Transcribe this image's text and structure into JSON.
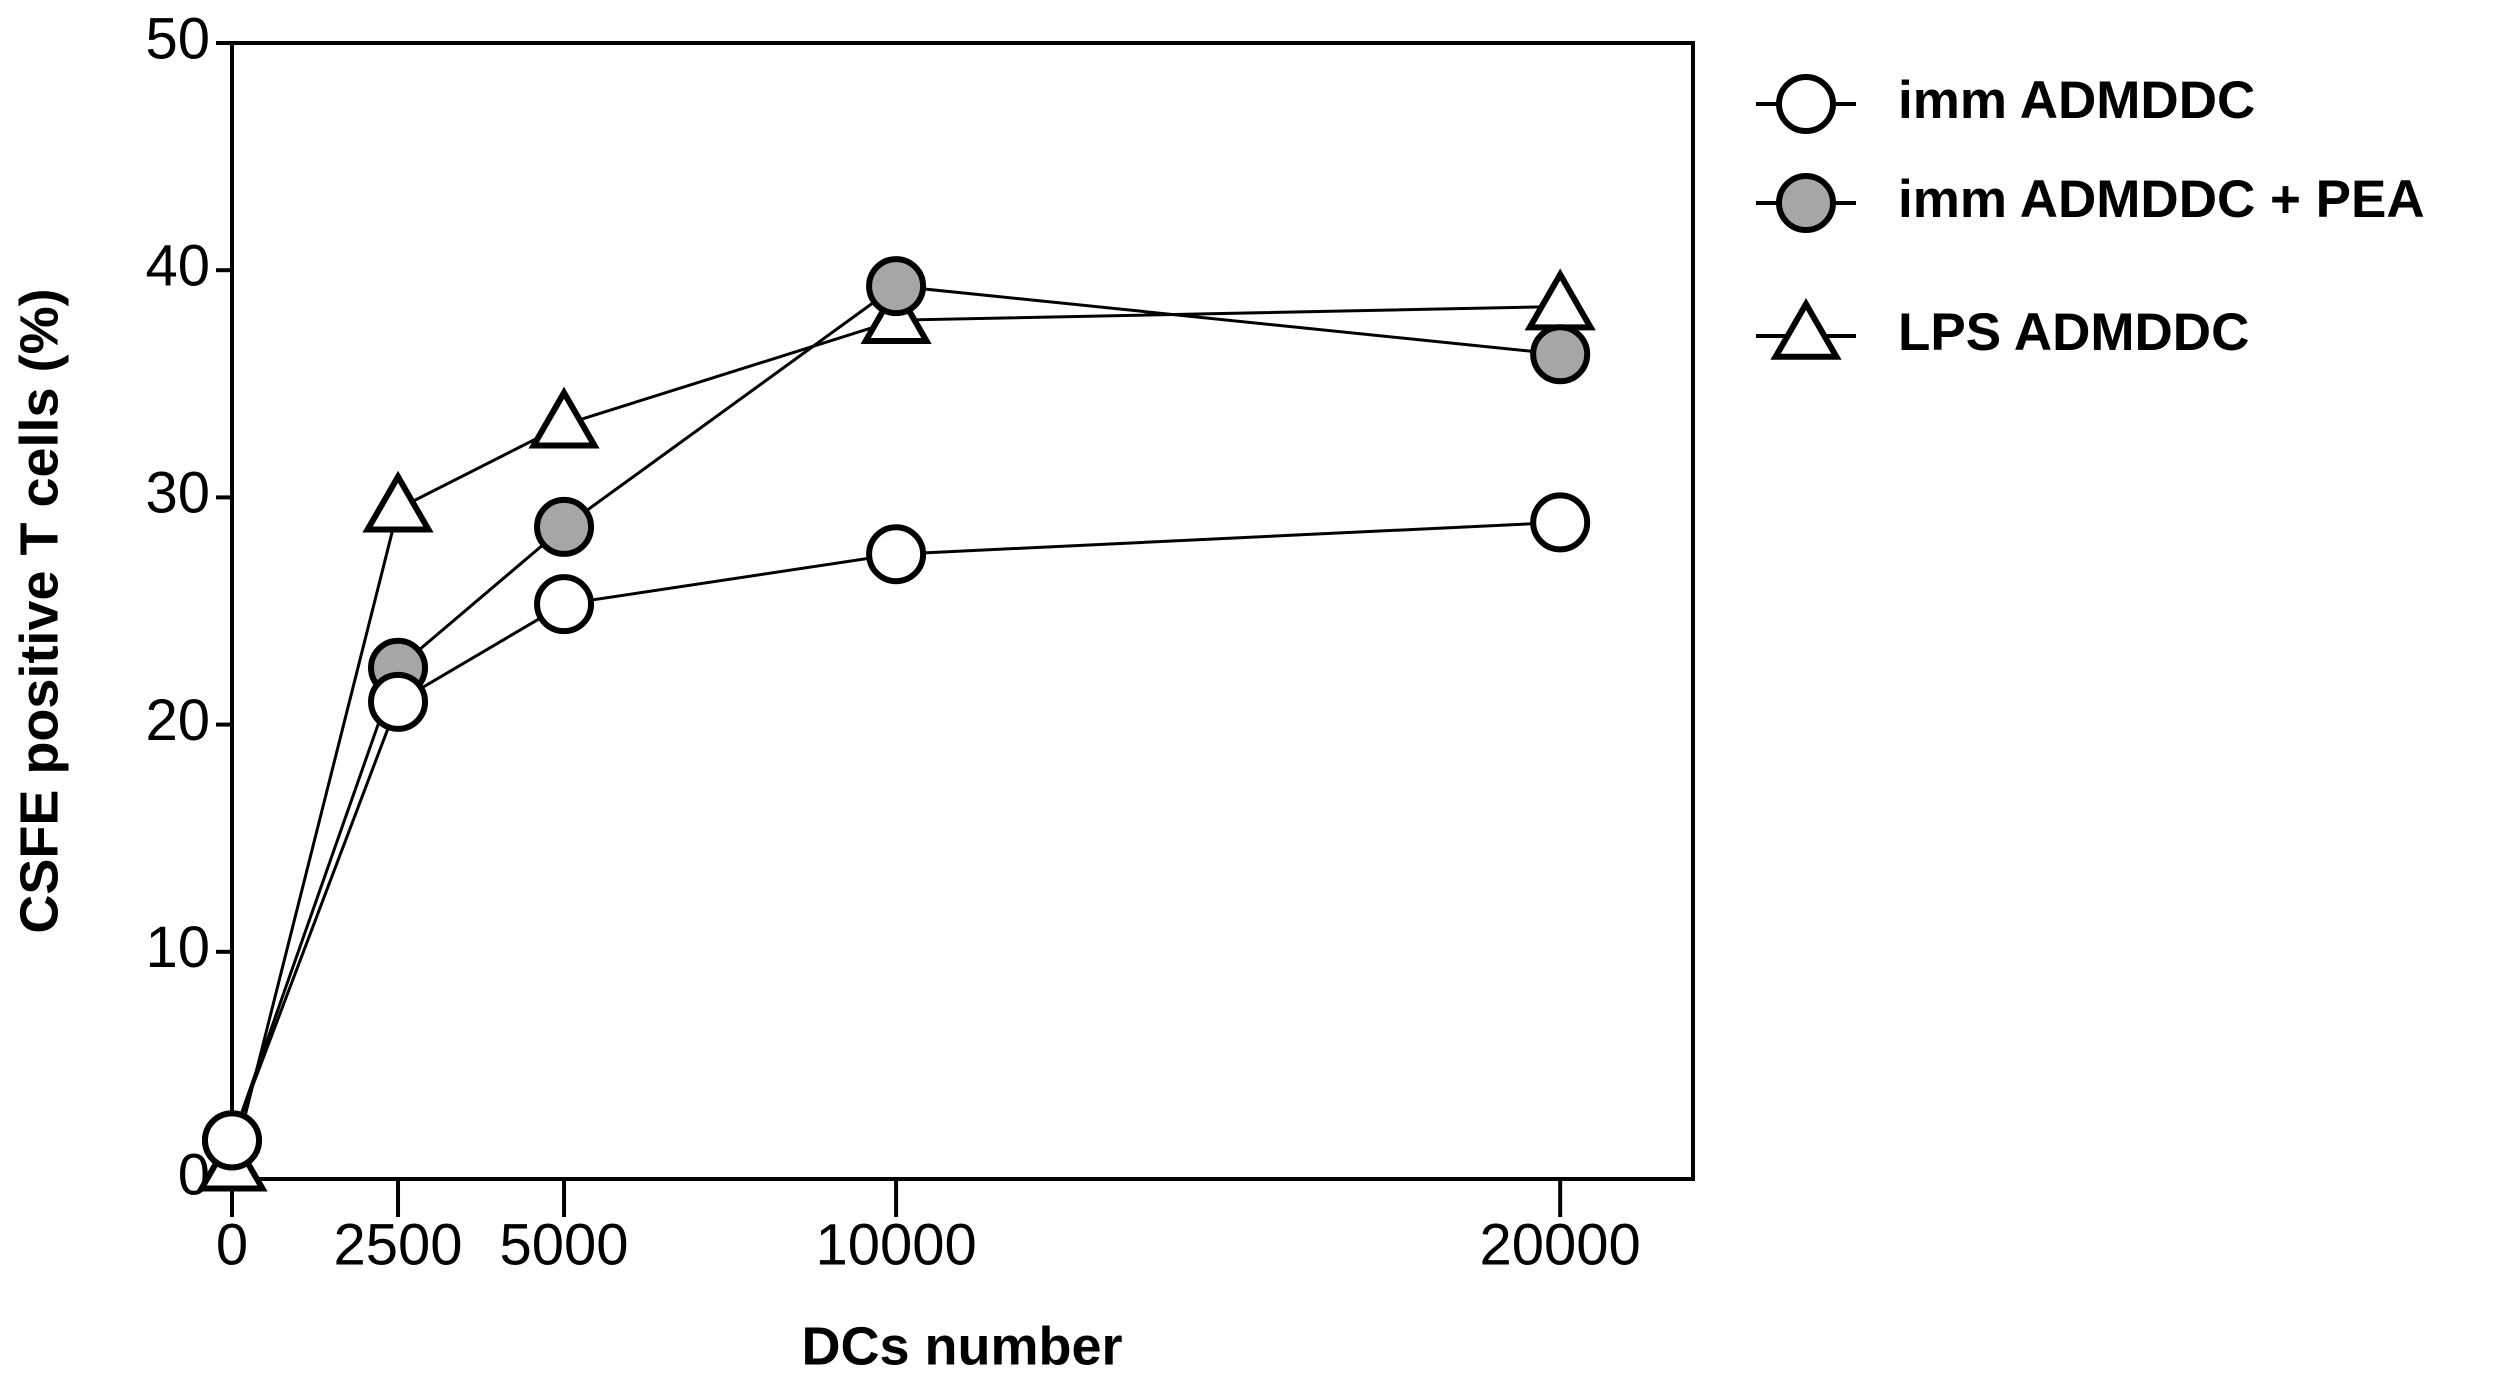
{
  "chart_data": {
    "type": "line",
    "x_label": "DCs number",
    "y_label": "CSFE positive T cells (%)",
    "x": [
      0,
      2500,
      5000,
      10000,
      20000
    ],
    "series": [
      {
        "name": "imm ADMDDC",
        "color": "#ffffff",
        "marker": "circle",
        "values": [
          1.7,
          21,
          25.3,
          27.5,
          28.9
        ]
      },
      {
        "name": "imm ADMDDC + PEA",
        "color": "#a6a6a6",
        "marker": "circle",
        "values": [
          1.7,
          22.5,
          28.7,
          39.3,
          36.3
        ]
      },
      {
        "name": "LPS ADMDDC",
        "color": "#ffffff",
        "marker": "triangle",
        "values": [
          0.5,
          29.5,
          33.2,
          37.8,
          38.4
        ]
      }
    ],
    "xlim": [
      0,
      22000
    ],
    "xticks": [
      0,
      2500,
      5000,
      10000,
      20000
    ],
    "ylim": [
      0,
      50
    ],
    "yticks": [
      0,
      10,
      20,
      30,
      40,
      50
    ],
    "grid": false,
    "legend": "right"
  }
}
